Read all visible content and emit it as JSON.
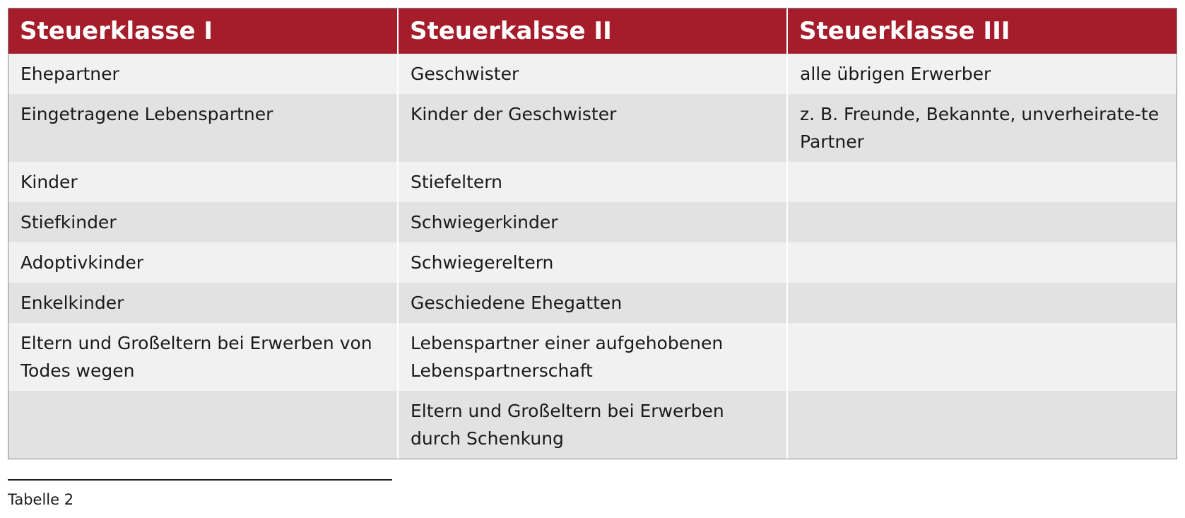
{
  "table": {
    "headers": [
      "Steuerklasse I",
      "Steuerkalsse II",
      "Steuerklasse III"
    ],
    "rows": [
      [
        "Ehepartner",
        "Geschwister",
        "alle übrigen Erwerber"
      ],
      [
        "Eingetragene Lebenspartner",
        "Kinder der Geschwister",
        "z. B. Freunde, Bekannte, unverheirate-te Partner"
      ],
      [
        "Kinder",
        "Stiefeltern",
        ""
      ],
      [
        "Stiefkinder",
        "Schwiegerkinder",
        ""
      ],
      [
        "Adoptivkinder",
        "Schwiegereltern",
        ""
      ],
      [
        "Enkelkinder",
        "Geschiedene Ehegatten",
        ""
      ],
      [
        "Eltern und Großeltern bei Erwerben von Todes wegen",
        "Lebenspartner einer aufgehobenen Lebenspartnerschaft",
        ""
      ],
      [
        "",
        "Eltern und Großeltern bei Erwerben durch Schenkung",
        ""
      ]
    ]
  },
  "caption": "Tabelle 2",
  "colors": {
    "header_bg": "#a51c2a",
    "header_text": "#ffffff",
    "row_light": "#f1f1f1",
    "row_dark": "#e2e2e2"
  }
}
